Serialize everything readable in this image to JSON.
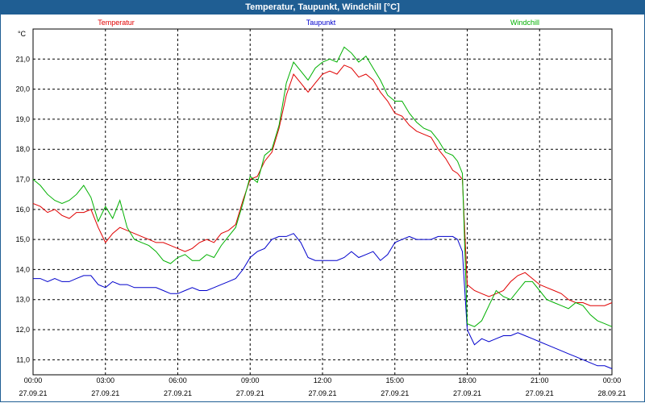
{
  "window": {
    "title": "Temperatur, Taupunkt, Windchill [°C]"
  },
  "chart_data": {
    "type": "line",
    "title": "Temperatur, Taupunkt, Windchill [°C]",
    "ylabel": "°C",
    "xlabel": "",
    "ylim": [
      10.5,
      22.0
    ],
    "xlim": [
      0,
      24
    ],
    "yticks": [
      11,
      12,
      13,
      14,
      15,
      16,
      17,
      18,
      19,
      20,
      21
    ],
    "ytick_labels": [
      "11,0",
      "12,0",
      "13,0",
      "14,0",
      "15,0",
      "16,0",
      "17,0",
      "18,0",
      "19,0",
      "20,0",
      "21,0"
    ],
    "xticks": [
      0,
      3,
      6,
      9,
      12,
      15,
      18,
      21,
      24
    ],
    "xtick_labels": [
      {
        "time": "00:00",
        "date": "27.09.21"
      },
      {
        "time": "03:00",
        "date": "27.09.21"
      },
      {
        "time": "06:00",
        "date": "27.09.21"
      },
      {
        "time": "09:00",
        "date": "27.09.21"
      },
      {
        "time": "12:00",
        "date": "27.09.21"
      },
      {
        "time": "15:00",
        "date": "27.09.21"
      },
      {
        "time": "18:00",
        "date": "27.09.21"
      },
      {
        "time": "21:00",
        "date": "27.09.21"
      },
      {
        "time": "00:00",
        "date": "28.09.21"
      }
    ],
    "grid": true,
    "series": [
      {
        "name": "Temperatur",
        "color": "#e00000",
        "x": [
          0,
          0.3,
          0.6,
          0.9,
          1.2,
          1.5,
          1.8,
          2.1,
          2.4,
          2.7,
          3.0,
          3.3,
          3.6,
          3.9,
          4.2,
          4.5,
          4.8,
          5.1,
          5.4,
          5.7,
          6.0,
          6.3,
          6.6,
          6.9,
          7.2,
          7.5,
          7.8,
          8.1,
          8.4,
          8.7,
          9.0,
          9.3,
          9.6,
          9.9,
          10.2,
          10.5,
          10.8,
          11.1,
          11.4,
          11.7,
          12.0,
          12.3,
          12.6,
          12.9,
          13.2,
          13.5,
          13.8,
          14.1,
          14.4,
          14.7,
          15.0,
          15.3,
          15.6,
          15.9,
          16.2,
          16.5,
          16.8,
          17.1,
          17.4,
          17.6,
          17.8,
          18.0,
          18.3,
          18.6,
          18.9,
          19.2,
          19.5,
          19.8,
          20.1,
          20.4,
          20.7,
          21.0,
          21.3,
          21.6,
          21.9,
          22.2,
          22.5,
          22.8,
          23.1,
          23.4,
          23.7,
          24.0
        ],
        "values": [
          16.2,
          16.1,
          15.9,
          16.0,
          15.8,
          15.7,
          15.9,
          15.9,
          16.0,
          15.4,
          14.9,
          15.2,
          15.4,
          15.3,
          15.2,
          15.1,
          15.0,
          14.9,
          14.9,
          14.8,
          14.7,
          14.6,
          14.7,
          14.9,
          15.0,
          14.9,
          15.2,
          15.3,
          15.5,
          16.3,
          17.0,
          17.1,
          17.6,
          17.9,
          18.7,
          19.8,
          20.5,
          20.2,
          19.9,
          20.2,
          20.5,
          20.6,
          20.5,
          20.8,
          20.7,
          20.4,
          20.5,
          20.3,
          19.9,
          19.6,
          19.2,
          19.1,
          18.8,
          18.6,
          18.5,
          18.4,
          18.0,
          17.7,
          17.3,
          17.2,
          17.0,
          13.5,
          13.3,
          13.2,
          13.1,
          13.2,
          13.3,
          13.6,
          13.8,
          13.9,
          13.7,
          13.5,
          13.4,
          13.3,
          13.2,
          13.0,
          12.9,
          12.9,
          12.8,
          12.8,
          12.8,
          12.9
        ]
      },
      {
        "name": "Taupunkt",
        "color": "#0000cc",
        "x": [
          0,
          0.3,
          0.6,
          0.9,
          1.2,
          1.5,
          1.8,
          2.1,
          2.4,
          2.7,
          3.0,
          3.3,
          3.6,
          3.9,
          4.2,
          4.5,
          4.8,
          5.1,
          5.4,
          5.7,
          6.0,
          6.3,
          6.6,
          6.9,
          7.2,
          7.5,
          7.8,
          8.1,
          8.4,
          8.7,
          9.0,
          9.3,
          9.6,
          9.9,
          10.2,
          10.5,
          10.8,
          11.1,
          11.4,
          11.7,
          12.0,
          12.3,
          12.6,
          12.9,
          13.2,
          13.5,
          13.8,
          14.1,
          14.4,
          14.7,
          15.0,
          15.3,
          15.6,
          15.9,
          16.2,
          16.5,
          16.8,
          17.1,
          17.4,
          17.6,
          17.8,
          18.0,
          18.3,
          18.6,
          18.9,
          19.2,
          19.5,
          19.8,
          20.1,
          20.4,
          20.7,
          21.0,
          21.3,
          21.6,
          21.9,
          22.2,
          22.5,
          22.8,
          23.1,
          23.4,
          23.7,
          24.0
        ],
        "values": [
          13.7,
          13.7,
          13.6,
          13.7,
          13.6,
          13.6,
          13.7,
          13.8,
          13.8,
          13.5,
          13.4,
          13.6,
          13.5,
          13.5,
          13.4,
          13.4,
          13.4,
          13.4,
          13.3,
          13.2,
          13.2,
          13.3,
          13.4,
          13.3,
          13.3,
          13.4,
          13.5,
          13.6,
          13.7,
          14.0,
          14.4,
          14.6,
          14.7,
          15.0,
          15.1,
          15.1,
          15.2,
          14.9,
          14.4,
          14.3,
          14.3,
          14.3,
          14.3,
          14.4,
          14.6,
          14.4,
          14.5,
          14.6,
          14.3,
          14.5,
          14.9,
          15.0,
          15.1,
          15.0,
          15.0,
          15.0,
          15.1,
          15.1,
          15.1,
          15.0,
          14.6,
          12.0,
          11.5,
          11.7,
          11.6,
          11.7,
          11.8,
          11.8,
          11.9,
          11.8,
          11.7,
          11.6,
          11.5,
          11.4,
          11.3,
          11.2,
          11.1,
          11.0,
          10.9,
          10.8,
          10.8,
          10.7
        ]
      },
      {
        "name": "Windchill",
        "color": "#00b000",
        "x": [
          0,
          0.3,
          0.6,
          0.9,
          1.2,
          1.5,
          1.8,
          2.1,
          2.4,
          2.7,
          3.0,
          3.3,
          3.6,
          3.9,
          4.2,
          4.5,
          4.8,
          5.1,
          5.4,
          5.7,
          6.0,
          6.3,
          6.6,
          6.9,
          7.2,
          7.5,
          7.8,
          8.1,
          8.4,
          8.7,
          9.0,
          9.3,
          9.6,
          9.9,
          10.2,
          10.5,
          10.8,
          11.1,
          11.4,
          11.7,
          12.0,
          12.3,
          12.6,
          12.9,
          13.2,
          13.5,
          13.8,
          14.1,
          14.4,
          14.7,
          15.0,
          15.3,
          15.6,
          15.9,
          16.2,
          16.5,
          16.8,
          17.1,
          17.4,
          17.6,
          17.8,
          18.0,
          18.3,
          18.6,
          18.9,
          19.2,
          19.5,
          19.8,
          20.1,
          20.4,
          20.7,
          21.0,
          21.3,
          21.6,
          21.9,
          22.2,
          22.5,
          22.8,
          23.1,
          23.4,
          23.7,
          24.0
        ],
        "values": [
          17.0,
          16.8,
          16.5,
          16.3,
          16.2,
          16.3,
          16.5,
          16.8,
          16.4,
          15.6,
          16.1,
          15.7,
          16.3,
          15.4,
          15.0,
          14.9,
          14.8,
          14.6,
          14.3,
          14.2,
          14.4,
          14.5,
          14.3,
          14.3,
          14.5,
          14.4,
          14.8,
          15.1,
          15.4,
          16.2,
          17.1,
          16.9,
          17.8,
          18.0,
          18.8,
          20.2,
          20.9,
          20.6,
          20.3,
          20.7,
          20.9,
          21.0,
          20.9,
          21.4,
          21.2,
          20.9,
          21.1,
          20.7,
          20.3,
          19.8,
          19.6,
          19.6,
          19.2,
          18.9,
          18.7,
          18.6,
          18.3,
          17.9,
          17.8,
          17.6,
          17.2,
          12.2,
          12.1,
          12.3,
          12.8,
          13.3,
          13.1,
          13.0,
          13.3,
          13.6,
          13.6,
          13.3,
          13.0,
          12.9,
          12.8,
          12.7,
          12.9,
          12.8,
          12.5,
          12.3,
          12.2,
          12.1
        ]
      }
    ]
  }
}
